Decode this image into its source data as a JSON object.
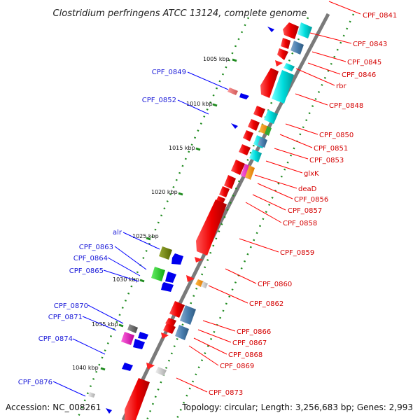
{
  "title": "Clostridium perfringens ATCC 13124, complete genome",
  "footer": {
    "accession": "Accession: NC_008261",
    "topology": "Topology: circular; Length: 3,256,683 bp; Genes: 2,993"
  },
  "kbp_ticks": [
    "1005 kbp",
    "1010 kbp",
    "1015 kbp",
    "1020 kbp",
    "1025 kbp",
    "1030 kbp",
    "1035 kbp",
    "1040 kbp"
  ],
  "right_labels": [
    "CPF_0841",
    "CPF_0843",
    "CPF_0845",
    "CPF_0846",
    "rbr",
    "CPF_0848",
    "CPF_0850",
    "CPF_0851",
    "CPF_0853",
    "glxK",
    "deaD",
    "CPF_0856",
    "CPF_0857",
    "CPF_0858",
    "CPF_0859",
    "CPF_0860",
    "CPF_0862",
    "CPF_0866",
    "CPF_0867",
    "CPF_0868",
    "CPF_0869",
    "CPF_0873"
  ],
  "left_labels": [
    "CPF_0849",
    "CPF_0852",
    "alr",
    "CPF_0863",
    "CPF_0864",
    "CPF_0865",
    "CPF_0870",
    "CPF_0871",
    "CPF_0874",
    "CPF_0876"
  ],
  "colors": {
    "forward_strand": "#ff0000",
    "reverse_strand": "#0000ee",
    "tick_green": "#1e8a1e",
    "backbone": "#808080",
    "label_red": "#d40000",
    "label_blue": "#1a1ad8"
  }
}
